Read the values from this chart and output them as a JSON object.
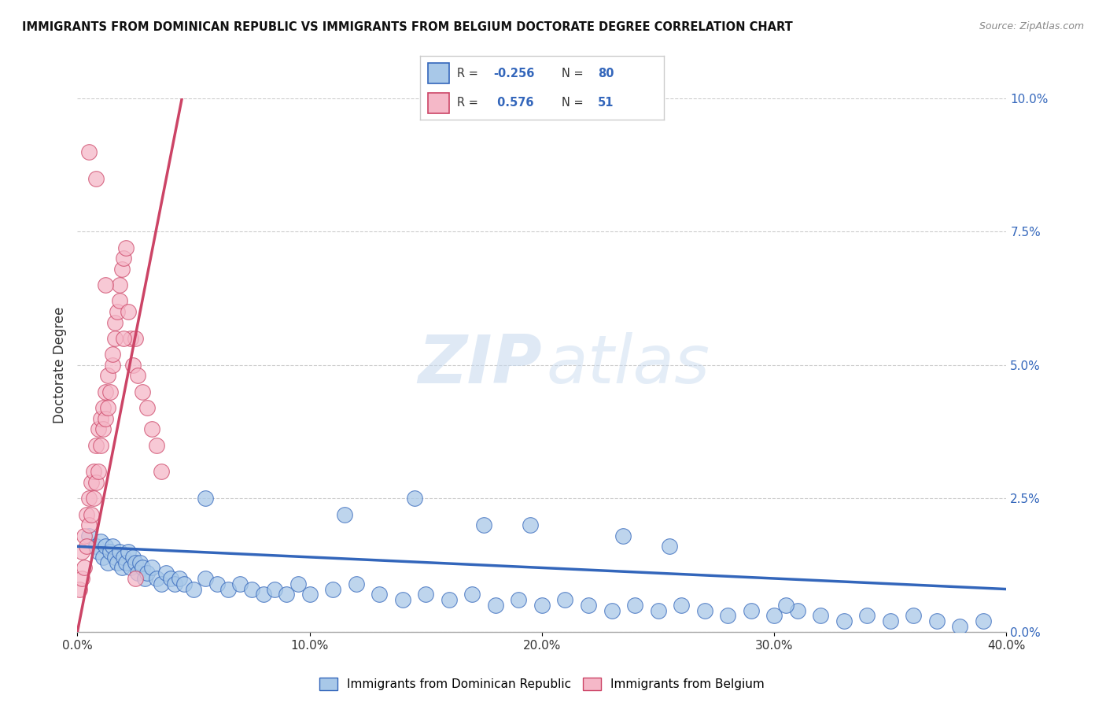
{
  "title": "IMMIGRANTS FROM DOMINICAN REPUBLIC VS IMMIGRANTS FROM BELGIUM DOCTORATE DEGREE CORRELATION CHART",
  "source": "Source: ZipAtlas.com",
  "ylabel": "Doctorate Degree",
  "legend_label1": "Immigrants from Dominican Republic",
  "legend_label2": "Immigrants from Belgium",
  "r1": -0.256,
  "n1": 80,
  "r2": 0.576,
  "n2": 51,
  "color_blue": "#a8c8e8",
  "color_pink": "#f5b8c8",
  "line_color_blue": "#3366bb",
  "line_color_pink": "#cc4466",
  "xlim": [
    0.0,
    0.4
  ],
  "ylim": [
    0.0,
    0.1
  ],
  "xticks": [
    0.0,
    0.1,
    0.2,
    0.3,
    0.4
  ],
  "xtick_labels": [
    "0.0%",
    "10.0%",
    "20.0%",
    "30.0%",
    "40.0%"
  ],
  "yticks_right": [
    0.0,
    0.025,
    0.05,
    0.075,
    0.1
  ],
  "ytick_labels_right": [
    "0.0%",
    "2.5%",
    "5.0%",
    "7.5%",
    "10.0%"
  ],
  "watermark_zip": "ZIP",
  "watermark_atlas": "atlas",
  "background_color": "#ffffff",
  "blue_x": [
    0.005,
    0.008,
    0.009,
    0.01,
    0.011,
    0.012,
    0.013,
    0.014,
    0.015,
    0.016,
    0.017,
    0.018,
    0.019,
    0.02,
    0.021,
    0.022,
    0.023,
    0.024,
    0.025,
    0.026,
    0.027,
    0.028,
    0.029,
    0.03,
    0.032,
    0.034,
    0.036,
    0.038,
    0.04,
    0.042,
    0.044,
    0.046,
    0.05,
    0.055,
    0.06,
    0.065,
    0.07,
    0.075,
    0.08,
    0.085,
    0.09,
    0.095,
    0.1,
    0.11,
    0.12,
    0.13,
    0.14,
    0.15,
    0.16,
    0.17,
    0.18,
    0.19,
    0.2,
    0.21,
    0.22,
    0.23,
    0.24,
    0.25,
    0.26,
    0.27,
    0.28,
    0.29,
    0.3,
    0.31,
    0.32,
    0.33,
    0.34,
    0.35,
    0.36,
    0.37,
    0.38,
    0.39,
    0.055,
    0.115,
    0.175,
    0.235,
    0.145,
    0.195,
    0.255,
    0.305
  ],
  "blue_y": [
    0.018,
    0.016,
    0.015,
    0.017,
    0.014,
    0.016,
    0.013,
    0.015,
    0.016,
    0.014,
    0.013,
    0.015,
    0.012,
    0.014,
    0.013,
    0.015,
    0.012,
    0.014,
    0.013,
    0.011,
    0.013,
    0.012,
    0.01,
    0.011,
    0.012,
    0.01,
    0.009,
    0.011,
    0.01,
    0.009,
    0.01,
    0.009,
    0.008,
    0.01,
    0.009,
    0.008,
    0.009,
    0.008,
    0.007,
    0.008,
    0.007,
    0.009,
    0.007,
    0.008,
    0.009,
    0.007,
    0.006,
    0.007,
    0.006,
    0.007,
    0.005,
    0.006,
    0.005,
    0.006,
    0.005,
    0.004,
    0.005,
    0.004,
    0.005,
    0.004,
    0.003,
    0.004,
    0.003,
    0.004,
    0.003,
    0.002,
    0.003,
    0.002,
    0.003,
    0.002,
    0.001,
    0.002,
    0.025,
    0.022,
    0.02,
    0.018,
    0.025,
    0.02,
    0.016,
    0.005
  ],
  "pink_x": [
    0.001,
    0.002,
    0.002,
    0.003,
    0.003,
    0.004,
    0.004,
    0.005,
    0.005,
    0.006,
    0.006,
    0.007,
    0.007,
    0.008,
    0.008,
    0.009,
    0.009,
    0.01,
    0.01,
    0.011,
    0.011,
    0.012,
    0.012,
    0.013,
    0.013,
    0.014,
    0.015,
    0.015,
    0.016,
    0.016,
    0.017,
    0.018,
    0.018,
    0.019,
    0.02,
    0.021,
    0.022,
    0.023,
    0.024,
    0.025,
    0.026,
    0.028,
    0.03,
    0.032,
    0.034,
    0.036,
    0.005,
    0.008,
    0.012,
    0.02,
    0.025
  ],
  "pink_y": [
    0.008,
    0.01,
    0.015,
    0.012,
    0.018,
    0.016,
    0.022,
    0.02,
    0.025,
    0.022,
    0.028,
    0.025,
    0.03,
    0.028,
    0.035,
    0.03,
    0.038,
    0.035,
    0.04,
    0.038,
    0.042,
    0.04,
    0.045,
    0.042,
    0.048,
    0.045,
    0.05,
    0.052,
    0.055,
    0.058,
    0.06,
    0.062,
    0.065,
    0.068,
    0.07,
    0.072,
    0.06,
    0.055,
    0.05,
    0.055,
    0.048,
    0.045,
    0.042,
    0.038,
    0.035,
    0.03,
    0.09,
    0.085,
    0.065,
    0.055,
    0.01
  ],
  "blue_trend_x": [
    0.0,
    0.4
  ],
  "blue_trend_y": [
    0.016,
    0.008
  ],
  "pink_trend_x": [
    0.0,
    0.045
  ],
  "pink_trend_y": [
    0.0,
    0.1
  ]
}
